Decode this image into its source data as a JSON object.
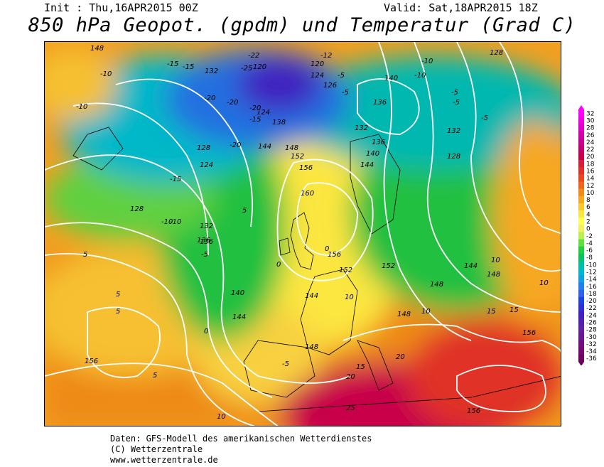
{
  "header": {
    "init": "Init : Thu,16APR2015 00Z",
    "valid": "Valid: Sat,18APR2015 18Z",
    "title": "850 hPa Geopot. (gpdm) und Temperatur (Grad C)"
  },
  "footer": {
    "line1": "Daten: GFS-Modell des amerikanischen Wetterdienstes",
    "line2": "(C) Wetterzentrale",
    "line3": "www.wetterzentrale.de"
  },
  "legend": {
    "values": [
      "32",
      "30",
      "28",
      "26",
      "24",
      "22",
      "20",
      "18",
      "16",
      "14",
      "12",
      "10",
      "8",
      "6",
      "4",
      "2",
      "0",
      "-2",
      "-4",
      "-6",
      "-8",
      "-10",
      "-12",
      "-14",
      "-16",
      "-18",
      "-20",
      "-22",
      "-24",
      "-26",
      "-28",
      "-30",
      "-32",
      "-34",
      "-36"
    ],
    "colors": [
      "#ff00ff",
      "#f000e6",
      "#e000c8",
      "#d000a8",
      "#c80090",
      "#c00070",
      "#c80048",
      "#d0203a",
      "#e03028",
      "#e84820",
      "#ee6618",
      "#f28a18",
      "#f6a820",
      "#fac830",
      "#fce640",
      "#ffff50",
      "#f0f060",
      "#b8f050",
      "#60e040",
      "#20d040",
      "#10c060",
      "#00c0a0",
      "#00b8d0",
      "#10a0e0",
      "#2080f0",
      "#3060f0",
      "#2040e0",
      "#3030d0",
      "#4020c0",
      "#5020b0",
      "#6020a0",
      "#6a1890",
      "#700e80",
      "#740870",
      "#700060"
    ]
  },
  "map": {
    "geopotential_labels": [
      "148",
      "132",
      "128",
      "120",
      "124",
      "126",
      "140",
      "136",
      "128",
      "132",
      "124",
      "124",
      "128",
      "132",
      "136",
      "138",
      "144",
      "148",
      "152",
      "156",
      "160",
      "144",
      "140",
      "136",
      "132",
      "128",
      "128",
      "156",
      "152",
      "148",
      "144",
      "152",
      "148",
      "148",
      "144",
      "148",
      "156",
      "156",
      "148",
      "144",
      "140",
      "136"
    ],
    "temperature_labels": [
      "-10",
      "-10",
      "-15",
      "-15",
      "-20",
      "-20",
      "-25",
      "-20",
      "-15",
      "-22",
      "-20",
      "-12",
      "-5",
      "-5",
      "-10",
      "-10",
      "-5",
      "-5",
      "-5",
      "-15",
      "-10",
      "-5",
      "5",
      "5",
      "5",
      "10",
      "10",
      "15",
      "15",
      "20",
      "20",
      "25",
      "10",
      "0",
      "0",
      "-5",
      "10",
      "15",
      "10",
      "5",
      "5",
      "0",
      "-10"
    ]
  },
  "colors": {
    "contour": "#ffffff",
    "coastline": "#000000"
  }
}
